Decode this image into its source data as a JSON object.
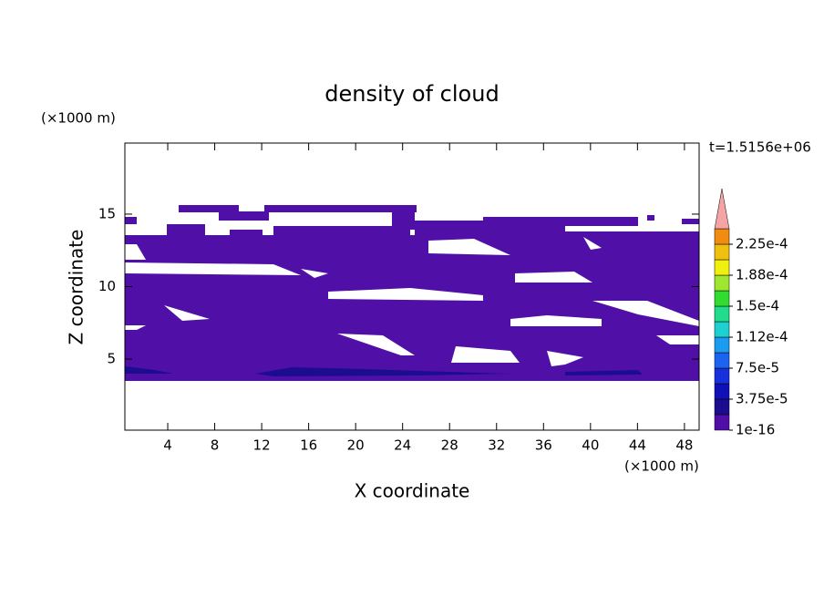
{
  "chart_data": {
    "type": "contour",
    "title": "density of cloud",
    "x_label": "X coordinate",
    "y_label": "Z coordinate",
    "x_unit": "(×1000 m)",
    "y_unit": "(×1000 m)",
    "time_label": "t=1.5156e+06",
    "xlim": [
      0.35,
      49.25
    ],
    "xticks": [
      4,
      8,
      12,
      16,
      20,
      24,
      28,
      32,
      36,
      40,
      44,
      48
    ],
    "ylim": [
      0.1,
      19.9
    ],
    "yticks": [
      5,
      10,
      15
    ],
    "colors": [
      "#5010a8",
      "#1c0c90",
      "#1010b8",
      "#1830dc",
      "#1c64f0",
      "#1c9cf0",
      "#20d0d0",
      "#20dc8c",
      "#30dc30",
      "#a0e630",
      "#f0f010",
      "#f0c010",
      "#f08c10",
      "#f03c10",
      "#f01010"
    ],
    "over_color": "#f4a4a4",
    "colorbar_ticks": [
      {
        "value": 1e-16,
        "label": "1e-16"
      },
      {
        "value": 3.75e-05,
        "label": "3.75e-5"
      },
      {
        "value": 7.5e-05,
        "label": "7.5e-5"
      },
      {
        "value": 0.000112,
        "label": "1.12e-4"
      },
      {
        "value": 0.00015,
        "label": "1.5e-4"
      },
      {
        "value": 0.000188,
        "label": "1.88e-4"
      },
      {
        "value": 0.000225,
        "label": "2.25e-4"
      }
    ]
  }
}
